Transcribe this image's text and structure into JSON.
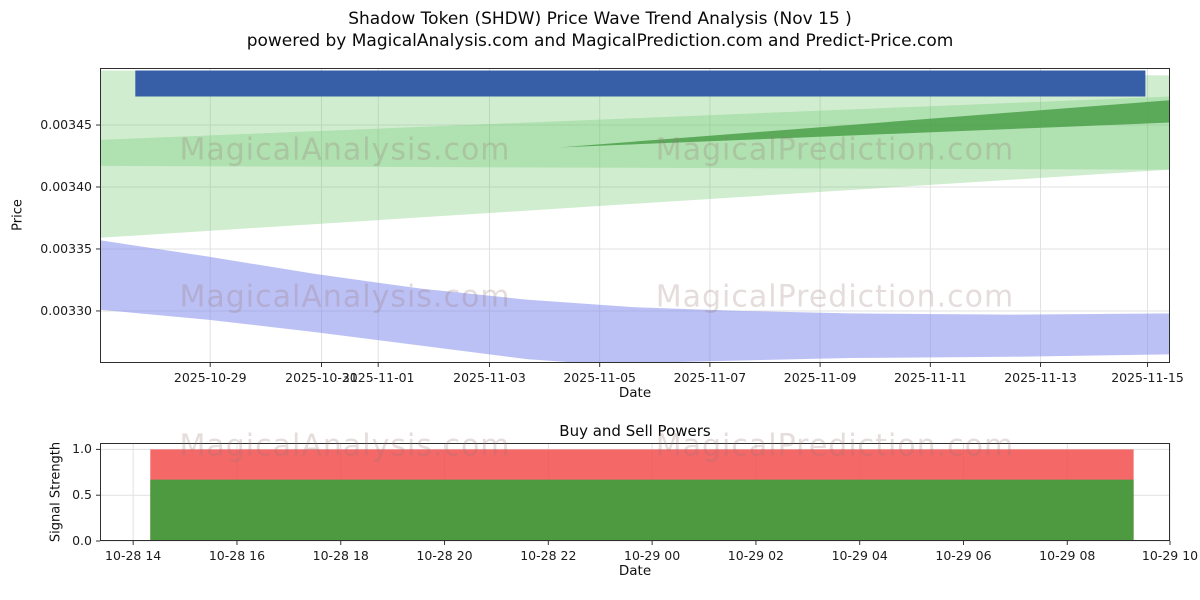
{
  "title": {
    "line1": "Shadow Token (SHDW) Price Wave Trend Analysis (Nov 15 )",
    "line2": "powered by MagicalAnalysis.com and MagicalPrediction.com and Predict-Price.com"
  },
  "watermarks": {
    "left": "MagicalAnalysis.com",
    "right": "MagicalPrediction.com"
  },
  "chart_data": [
    {
      "type": "area",
      "title": "",
      "xlabel": "Date",
      "ylabel": "Price",
      "ylim": [
        0.003258,
        0.003496
      ],
      "grid": true,
      "yticks": [
        {
          "value": 0.00345,
          "label": "0.00345"
        },
        {
          "value": 0.0034,
          "label": "0.00340"
        },
        {
          "value": 0.00335,
          "label": "0.00335"
        },
        {
          "value": 0.0033,
          "label": "0.00330"
        }
      ],
      "xticks": [
        {
          "pos": 0.103,
          "label": "2025-10-29"
        },
        {
          "pos": 0.207,
          "label": "2025-10-31"
        },
        {
          "pos": 0.26,
          "label": "2025-11-01"
        },
        {
          "pos": 0.364,
          "label": "2025-11-03"
        },
        {
          "pos": 0.467,
          "label": "2025-11-05"
        },
        {
          "pos": 0.57,
          "label": "2025-11-07"
        },
        {
          "pos": 0.673,
          "label": "2025-11-09"
        },
        {
          "pos": 0.776,
          "label": "2025-11-11"
        },
        {
          "pos": 0.879,
          "label": "2025-11-13"
        },
        {
          "pos": 0.979,
          "label": "2025-11-15"
        }
      ],
      "bands": [
        {
          "name": "upper-trend-band-light-green",
          "color": "rgb(110,200,110)",
          "opacity": 0.32,
          "points": [
            [
              0,
              0.003494
            ],
            [
              1,
              0.00349
            ],
            [
              1,
              0.003414
            ],
            [
              0,
              0.003359
            ]
          ]
        },
        {
          "name": "rising-trend-band-light-green",
          "color": "rgb(110,200,110)",
          "opacity": 0.32,
          "points": [
            [
              0,
              0.003438
            ],
            [
              1,
              0.003473
            ],
            [
              1,
              0.003414
            ],
            [
              0,
              0.003417
            ]
          ]
        },
        {
          "name": "trend-wedge-dark-green",
          "color": "rgb(75,160,75)",
          "opacity": 0.85,
          "points": [
            [
              0.43,
              0.003432
            ],
            [
              1,
              0.00347
            ],
            [
              1,
              0.003452
            ]
          ]
        },
        {
          "name": "resistance-bar-blue",
          "color": "rgb(55,95,168)",
          "opacity": 1,
          "points": [
            [
              0.033,
              0.003494
            ],
            [
              0.977,
              0.003494
            ],
            [
              0.977,
              0.003473
            ],
            [
              0.033,
              0.003473
            ]
          ]
        },
        {
          "name": "lower-wave-band-purple",
          "color": "rgb(122,132,235)",
          "opacity": 0.5,
          "points": [
            [
              0,
              0.003357
            ],
            [
              0.1,
              0.003344
            ],
            [
              0.2,
              0.00333
            ],
            [
              0.3,
              0.003318
            ],
            [
              0.4,
              0.003309
            ],
            [
              0.5,
              0.003303
            ],
            [
              0.6,
              0.0033
            ],
            [
              0.7,
              0.003298
            ],
            [
              0.85,
              0.003297
            ],
            [
              1,
              0.003298
            ],
            [
              1,
              0.003265
            ],
            [
              0.85,
              0.003263
            ],
            [
              0.7,
              0.003262
            ],
            [
              0.6,
              0.00326
            ],
            [
              0.5,
              0.003258
            ],
            [
              0.45,
              0.003258
            ],
            [
              0.4,
              0.003261
            ],
            [
              0.3,
              0.003272
            ],
            [
              0.2,
              0.003283
            ],
            [
              0.1,
              0.003293
            ],
            [
              0,
              0.003301
            ]
          ]
        }
      ]
    },
    {
      "type": "bar",
      "title": "Buy and Sell Powers",
      "xlabel": "Date",
      "ylabel": "Signal Strength",
      "ylim": [
        0,
        1.07
      ],
      "grid": true,
      "yticks": [
        {
          "value": 1.0,
          "label": "1.0"
        },
        {
          "value": 0.5,
          "label": "0.5"
        },
        {
          "value": 0.0,
          "label": "0.0"
        }
      ],
      "xticks": [
        {
          "pos": 0.031,
          "label": "10-28 14"
        },
        {
          "pos": 0.128,
          "label": "10-28 16"
        },
        {
          "pos": 0.225,
          "label": "10-28 18"
        },
        {
          "pos": 0.322,
          "label": "10-28 20"
        },
        {
          "pos": 0.419,
          "label": "10-28 22"
        },
        {
          "pos": 0.516,
          "label": "10-29 00"
        },
        {
          "pos": 0.613,
          "label": "10-29 02"
        },
        {
          "pos": 0.71,
          "label": "10-29 04"
        },
        {
          "pos": 0.807,
          "label": "10-29 06"
        },
        {
          "pos": 0.904,
          "label": "10-29 08"
        },
        {
          "pos": 1.0,
          "label": "10-29 10"
        }
      ],
      "bars": [
        {
          "name": "sell-power-bar",
          "value": 1.0,
          "x0": 0.047,
          "x1": 0.966,
          "color": "rgb(242,78,78)",
          "opacity": 0.85
        },
        {
          "name": "buy-power-bar",
          "value": 0.67,
          "x0": 0.047,
          "x1": 0.966,
          "color": "rgb(62,158,62)",
          "opacity": 0.92
        }
      ]
    }
  ]
}
